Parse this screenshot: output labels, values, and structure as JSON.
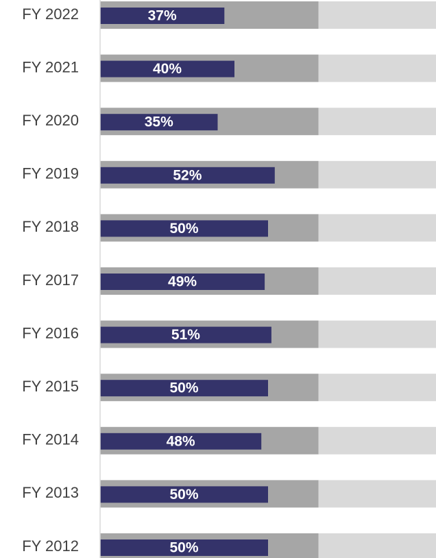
{
  "chart_data": {
    "type": "bar",
    "orientation": "horizontal",
    "categories": [
      "FY 2022",
      "FY 2021",
      "FY 2020",
      "FY 2019",
      "FY 2018",
      "FY 2017",
      "FY 2016",
      "FY 2015",
      "FY 2014",
      "FY 2013",
      "FY 2012"
    ],
    "values": [
      37,
      40,
      35,
      52,
      50,
      49,
      51,
      50,
      48,
      50,
      50
    ],
    "value_labels": [
      "37%",
      "40%",
      "35%",
      "52%",
      "50%",
      "49%",
      "51%",
      "50%",
      "48%",
      "50%",
      "50%"
    ],
    "color": "#34336a",
    "bands": [
      {
        "value": 65,
        "color": "#a6a6a6"
      },
      {
        "value": 100,
        "color": "#d9d9d9"
      }
    ],
    "xlim": [
      0,
      100
    ]
  }
}
